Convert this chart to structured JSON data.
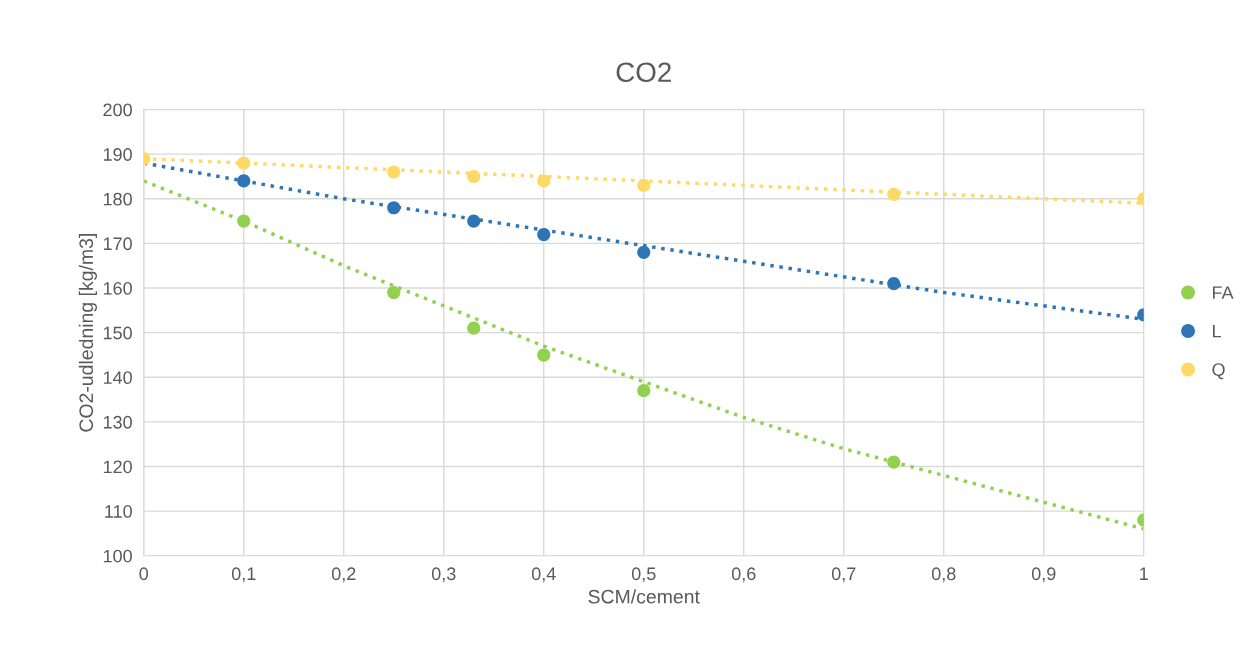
{
  "chart_data": {
    "type": "scatter",
    "title": "CO2",
    "xlabel": "SCM/cement",
    "ylabel": "CO2-udledning [kg/m3]",
    "xlim": [
      0,
      1
    ],
    "ylim": [
      100,
      200
    ],
    "xticks": [
      0,
      {
        "value": 0.1,
        "label": "0,1"
      },
      {
        "value": 0.2,
        "label": "0,2"
      },
      {
        "value": 0.3,
        "label": "0,3"
      },
      {
        "value": 0.4,
        "label": "0,4"
      },
      {
        "value": 0.5,
        "label": "0,5"
      },
      {
        "value": 0.6,
        "label": "0,6"
      },
      {
        "value": 0.7,
        "label": "0,7"
      },
      {
        "value": 0.8,
        "label": "0,8"
      },
      {
        "value": 0.9,
        "label": "0,9"
      },
      1
    ],
    "yticks": [
      100,
      110,
      120,
      130,
      140,
      150,
      160,
      170,
      180,
      190,
      200
    ],
    "grid": true,
    "legend": "right",
    "marker": "circle",
    "series": [
      {
        "type": "line",
        "line_style": "dotted",
        "marker": "none",
        "color": "#92d050",
        "x": [
          0,
          0.1,
          0.2,
          0.3,
          0.4,
          0.5,
          0.6,
          0.7,
          0.8,
          0.9,
          1
        ],
        "values": [
          184,
          175,
          165,
          156,
          147,
          139,
          131,
          124,
          118,
          112,
          106
        ]
      },
      {
        "type": "line",
        "line_style": "dotted",
        "marker": "none",
        "color": "#2e75b6",
        "x": [
          0,
          0.2,
          0.4,
          0.6,
          0.8,
          1
        ],
        "values": [
          188,
          180,
          173,
          166,
          159,
          153
        ]
      },
      {
        "type": "line",
        "line_style": "dotted",
        "marker": "none",
        "color": "#ffd966",
        "x": [
          0,
          0.5,
          1
        ],
        "values": [
          189,
          184,
          179
        ]
      },
      {
        "name": "FA",
        "color": "#92d050",
        "x": [
          0.1,
          0.25,
          0.33,
          0.4,
          0.5,
          0.75,
          1
        ],
        "values": [
          175,
          159,
          151,
          145,
          137,
          121,
          108
        ]
      },
      {
        "name": "L",
        "color": "#2e75b6",
        "x": [
          0.1,
          0.25,
          0.33,
          0.4,
          0.5,
          0.75,
          1
        ],
        "values": [
          184,
          178,
          175,
          172,
          168,
          161,
          154
        ]
      },
      {
        "name": "Q",
        "color": "#ffd966",
        "x": [
          0,
          0.1,
          0.25,
          0.33,
          0.4,
          0.5,
          0.75,
          1
        ],
        "values": [
          189,
          188,
          186,
          185,
          184,
          183,
          181,
          180
        ]
      }
    ]
  }
}
